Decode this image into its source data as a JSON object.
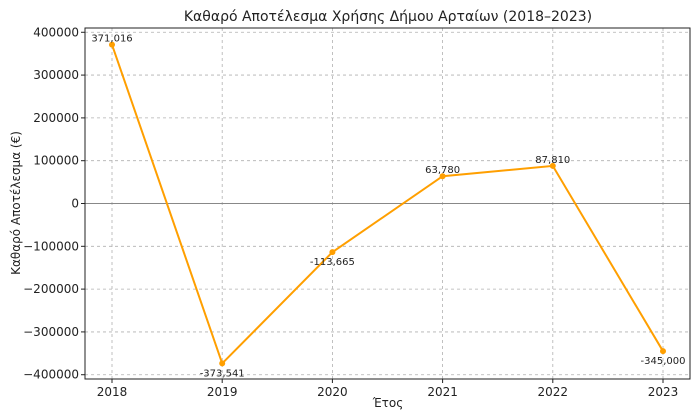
{
  "chart_data": {
    "type": "line",
    "title": "Καθαρό Αποτέλεσμα Χρήσης Δήμου Αρταίων (2018–2023)",
    "xlabel": "Έτος",
    "ylabel": "Καθαρό Αποτέλεσμα (€)",
    "x": [
      "2018",
      "2019",
      "2020",
      "2021",
      "2022",
      "2023"
    ],
    "series": [
      {
        "values": [
          371016,
          -373541,
          -113665,
          63780,
          87810,
          -345000
        ],
        "labels": [
          "371,016",
          "-373,541",
          "-113,665",
          "63,780",
          "87,810",
          "-345,000"
        ],
        "color": "#FF9F00"
      }
    ],
    "ylim": [
      -410000,
      410000
    ],
    "yticks": [
      400000,
      300000,
      200000,
      100000,
      0,
      -100000,
      -200000,
      -300000,
      -400000
    ],
    "ytick_labels": [
      "400000",
      "300000",
      "200000",
      "100000",
      "0",
      "−100000",
      "−200000",
      "−300000",
      "−400000"
    ],
    "grid": true,
    "zero_line": true
  }
}
